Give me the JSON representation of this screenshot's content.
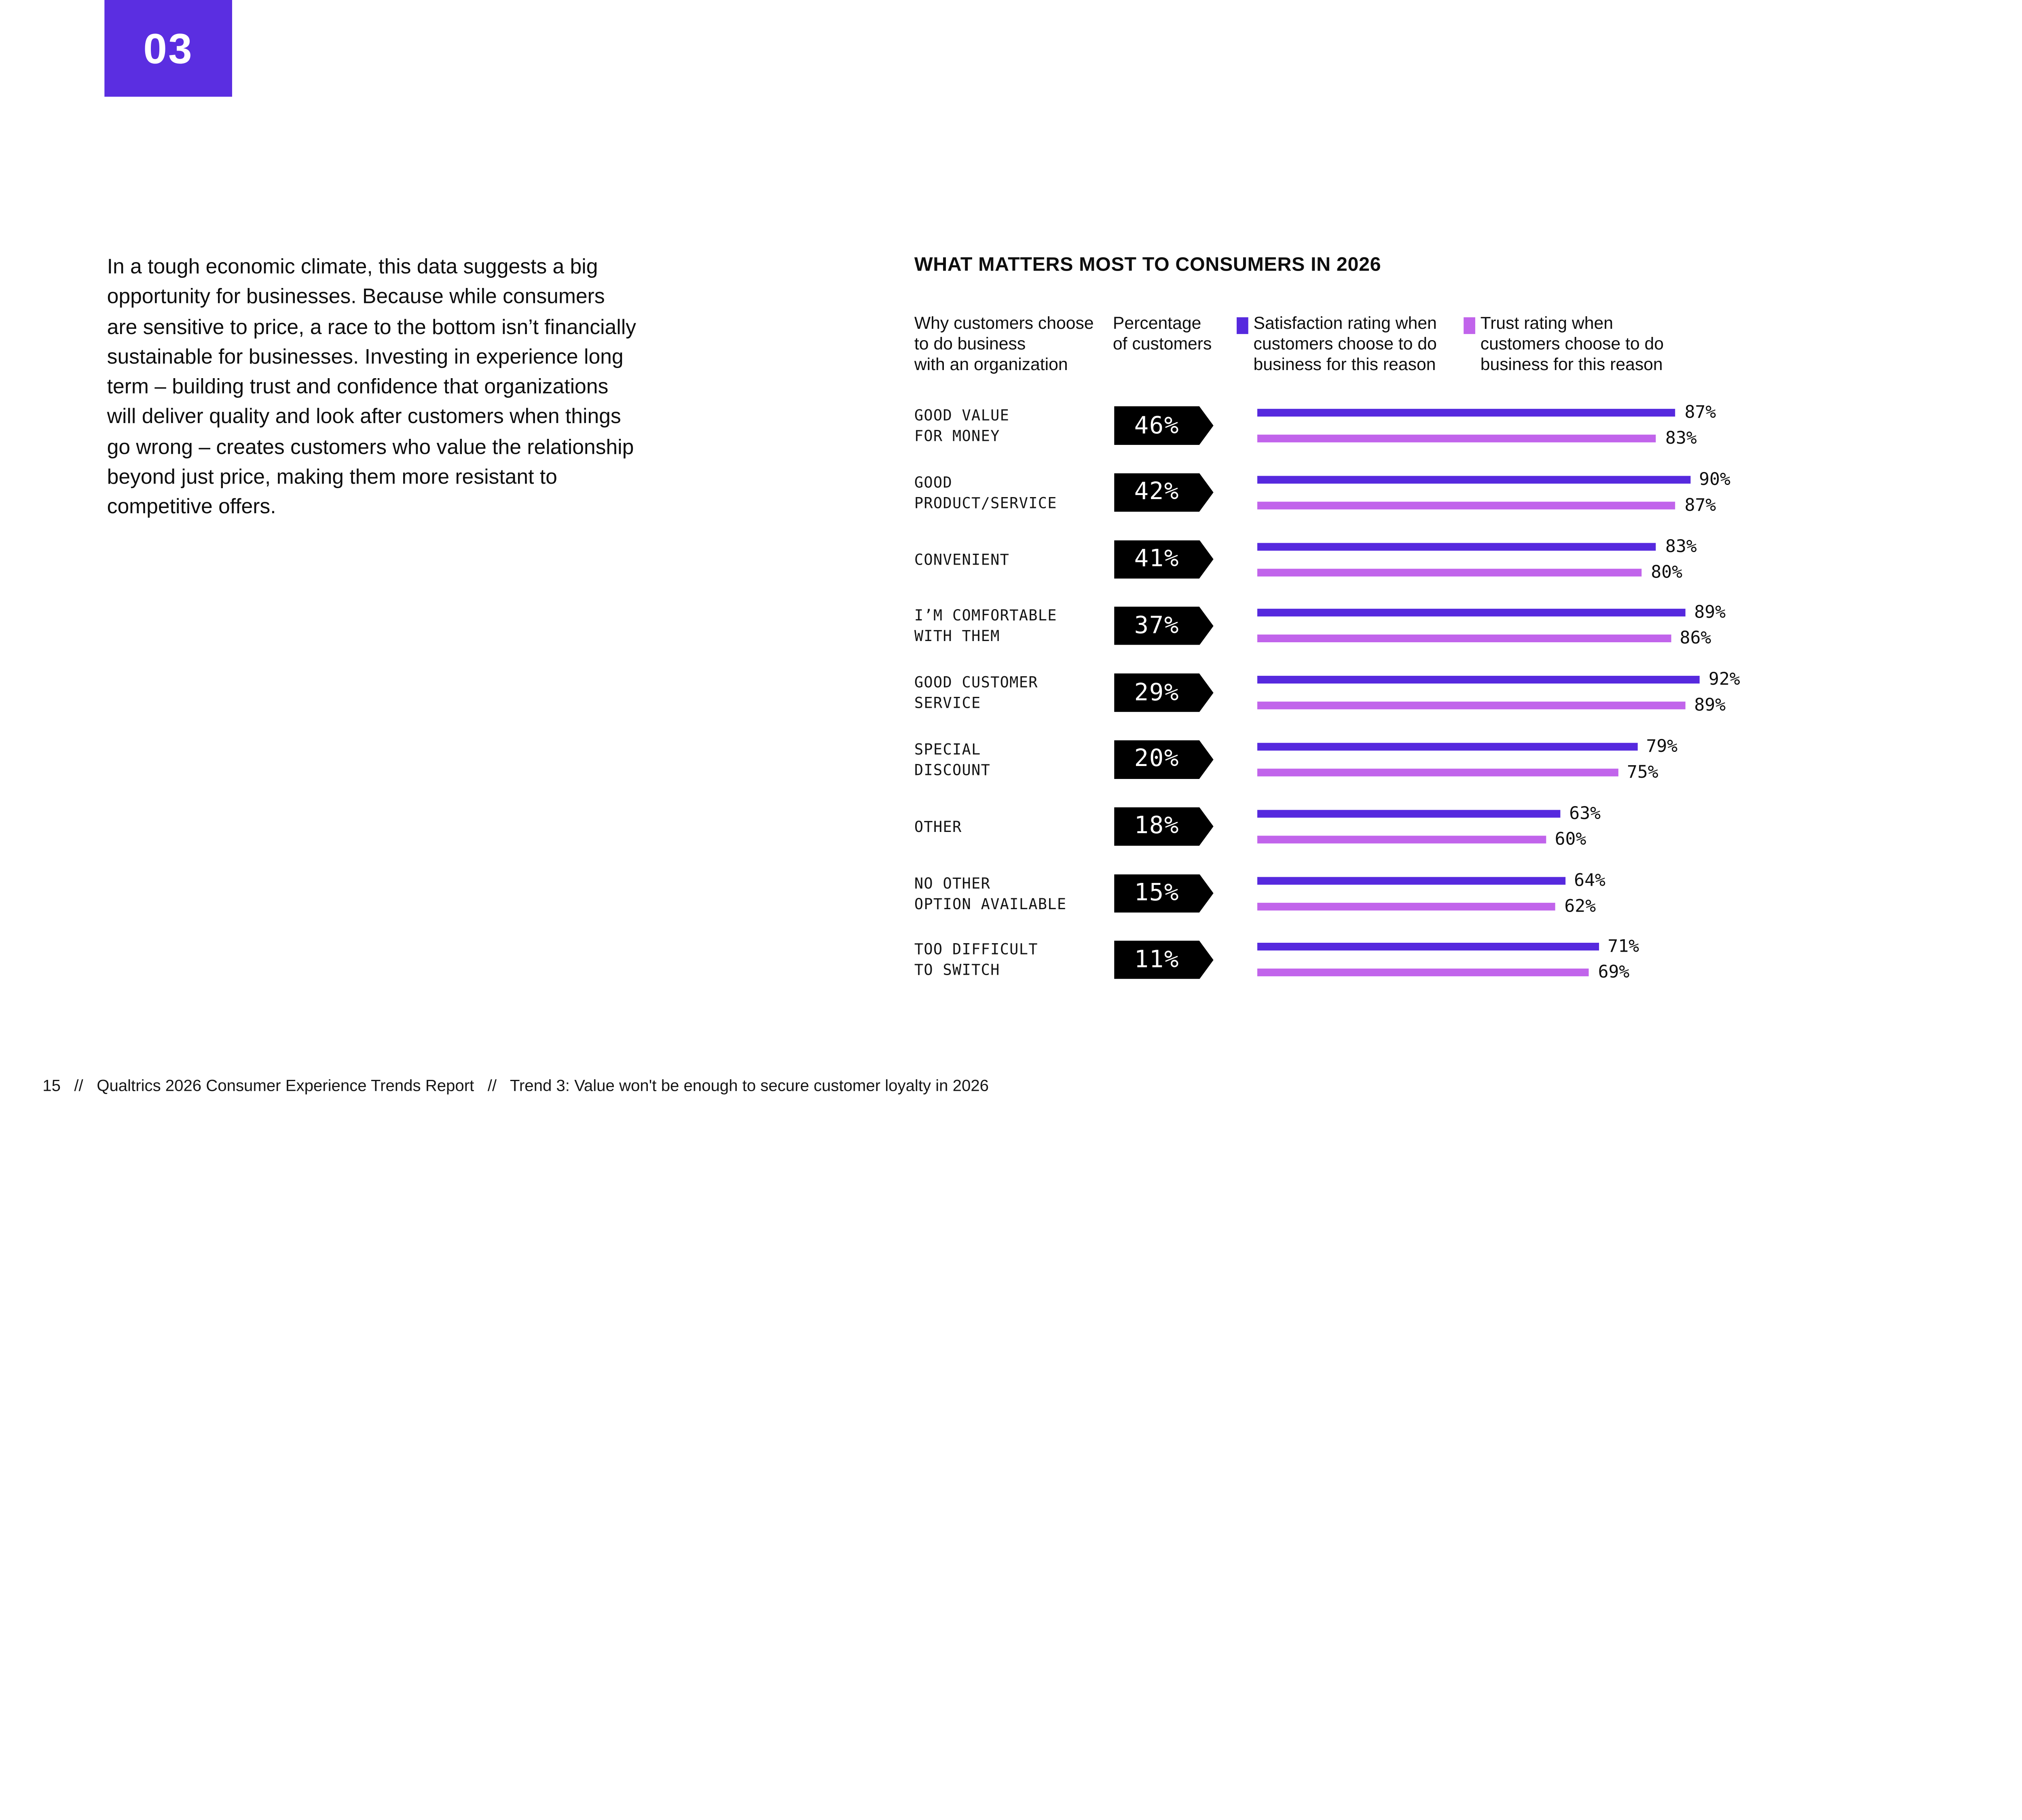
{
  "colors": {
    "accent": "#5B2EE1",
    "satisfaction": "#5629DE",
    "trust": "#C164EB",
    "tag_background": "#000000"
  },
  "badge": {
    "number": "03"
  },
  "intro_paragraph": "In a tough economic climate, this data suggests a big\nopportunity for businesses. Because while consumers\nare sensitive to price, a race to the bottom isn’t financially\nsustainable for businesses. Investing in experience long\nterm – building trust and confidence that organizations\nwill deliver quality and look after customers when things\ngo wrong – creates customers who value the relationship\nbeyond just price, making them more resistant to\ncompetitive offers.",
  "chart_data": {
    "type": "bar",
    "title": "WHAT MATTERS MOST TO CONSUMERS IN 2026",
    "orientation": "horizontal",
    "xlim": [
      0,
      100
    ],
    "grid": false,
    "legend_position": "top",
    "column_headers": {
      "category": "Why customers choose\nto do business\nwith an organization",
      "percentage": "Percentage\nof customers"
    },
    "legend": [
      {
        "name": "Satisfaction",
        "label": "Satisfaction rating when\ncustomers choose to do\nbusiness for this reason",
        "color": "#5629DE"
      },
      {
        "name": "Trust",
        "label": "Trust rating when\ncustomers choose to do\nbusiness for this reason",
        "color": "#C164EB"
      }
    ],
    "rows": [
      {
        "category": "GOOD VALUE FOR MONEY",
        "category_lines": [
          "GOOD VALUE",
          "FOR MONEY"
        ],
        "percentage": 46,
        "satisfaction": 87,
        "trust": 83
      },
      {
        "category": "GOOD PRODUCT/SERVICE",
        "category_lines": [
          "GOOD",
          "PRODUCT/SERVICE"
        ],
        "percentage": 42,
        "satisfaction": 90,
        "trust": 87
      },
      {
        "category": "CONVENIENT",
        "category_lines": [
          "CONVENIENT"
        ],
        "percentage": 41,
        "satisfaction": 83,
        "trust": 80
      },
      {
        "category": "I’M COMFORTABLE WITH THEM",
        "category_lines": [
          "I’M COMFORTABLE",
          "WITH THEM"
        ],
        "percentage": 37,
        "satisfaction": 89,
        "trust": 86
      },
      {
        "category": "GOOD CUSTOMER SERVICE",
        "category_lines": [
          "GOOD CUSTOMER",
          "SERVICE"
        ],
        "percentage": 29,
        "satisfaction": 92,
        "trust": 89
      },
      {
        "category": "SPECIAL DISCOUNT",
        "category_lines": [
          "SPECIAL",
          "DISCOUNT"
        ],
        "percentage": 20,
        "satisfaction": 79,
        "trust": 75
      },
      {
        "category": "OTHER",
        "category_lines": [
          "OTHER"
        ],
        "percentage": 18,
        "satisfaction": 63,
        "trust": 60
      },
      {
        "category": "NO OTHER OPTION AVAILABLE",
        "category_lines": [
          "NO OTHER",
          "OPTION AVAILABLE"
        ],
        "percentage": 15,
        "satisfaction": 64,
        "trust": 62
      },
      {
        "category": "TOO DIFFICULT TO SWITCH",
        "category_lines": [
          "TOO DIFFICULT",
          "TO SWITCH"
        ],
        "percentage": 11,
        "satisfaction": 71,
        "trust": 69
      }
    ]
  },
  "footer": {
    "page_number": "15",
    "separator": "//",
    "report_title": "Qualtrics 2026 Consumer Experience Trends Report",
    "trend_title": "Trend 3: Value won't be enough to secure customer loyalty in 2026"
  }
}
